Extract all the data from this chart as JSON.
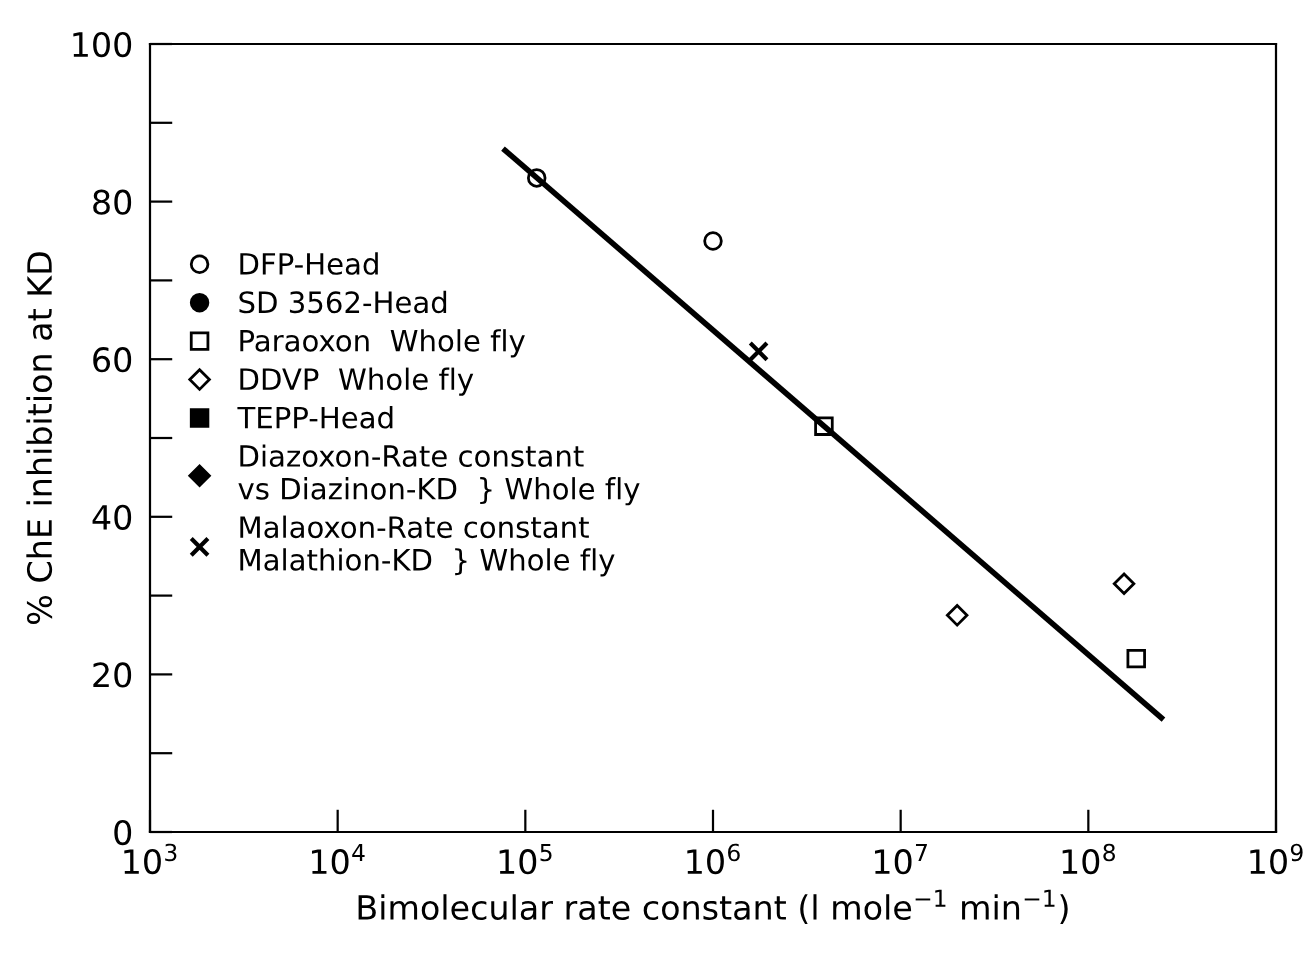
{
  "chart_data": {
    "type": "scatter",
    "xlabel": "Bimolecular rate constant (l mole$^{−1}$ min$^{−1}$)",
    "ylabel": "% ChE inhibition at KD",
    "log": "x",
    "xlim": [
      1000,
      1000000000
    ],
    "xticks": [
      {
        "value": 1000,
        "label": "10$^{3}$"
      },
      {
        "value": 10000,
        "label": "10$^{4}$"
      },
      {
        "value": 100000,
        "label": "10$^{5}$"
      },
      {
        "value": 1000000,
        "label": "10$^{6}$"
      },
      {
        "value": 10000000,
        "label": "10$^{7}$"
      },
      {
        "value": 100000000,
        "label": "10$^{8}$"
      },
      {
        "value": 1000000000,
        "label": "10$^{9}$"
      }
    ],
    "ylim": [
      0,
      100
    ],
    "yticks": [
      0,
      {
        "value": 10,
        "label": null
      },
      20,
      {
        "value": 30,
        "label": null
      },
      40,
      {
        "value": 50,
        "label": null
      },
      60,
      {
        "value": 70,
        "label": null
      },
      80,
      {
        "value": 90,
        "label": null
      },
      100
    ],
    "grid": false,
    "legend": "left",
    "series": [
      {
        "name": "DFP-Head",
        "color": "#000000",
        "marker": "circle",
        "x": [
          115000,
          1000000
        ],
        "values": [
          83,
          75
        ]
      },
      {
        "name": "SD 3562-Head",
        "color": "#000000",
        "marker": "circle"
      },
      {
        "name": "Paraoxon  Whole fly",
        "color": "#000000",
        "marker": "square",
        "x": [
          3900000,
          180000000
        ],
        "values": [
          51.5,
          22
        ]
      },
      {
        "name": "DDVP  Whole fly",
        "color": "#000000",
        "marker": "diamond",
        "x": [
          20000000,
          155000000
        ],
        "values": [
          27.5,
          31.5
        ]
      },
      {
        "name": "TEPP-Head",
        "color": "#000000",
        "marker": "square"
      },
      {
        "name": "Diazoxon-Rate constant\nvs Diazinon-KD  } Whole fly",
        "color": "#000000",
        "marker": "diamond"
      },
      {
        "name": "Malaoxon-Rate constant\nMalathion-KD  } Whole fly",
        "color": "#000000",
        "marker": "cross",
        "x": [
          1750000
        ],
        "values": [
          61
        ]
      },
      {
        "type": "line",
        "color": "#000000",
        "marker": "none",
        "x": [
          78000,
          245000000
        ],
        "values": [
          86.5,
          14.5
        ]
      }
    ]
  }
}
